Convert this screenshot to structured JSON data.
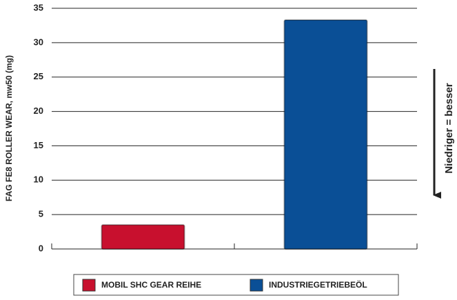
{
  "chart_data": {
    "type": "bar",
    "ylabel": "FAG FE8 ROLLER WEAR, mw50 (mg)",
    "annotation": "Niedriger = besser",
    "series": [
      {
        "name": "MOBIL SHC GEAR REIHE",
        "color": "#c8102e",
        "values": [
          3.5
        ]
      },
      {
        "name": "INDUSTRIEGETRIEBEÖL",
        "color": "#0a4f96",
        "values": [
          33.3
        ]
      }
    ],
    "ylim": [
      0,
      35
    ],
    "yticks": [
      0,
      5,
      10,
      15,
      20,
      25,
      30,
      35
    ],
    "grid": true
  }
}
